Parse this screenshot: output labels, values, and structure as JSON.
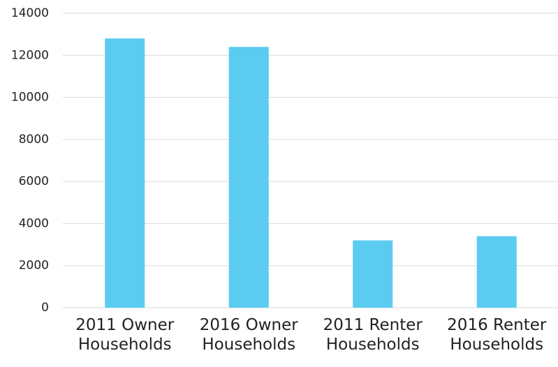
{
  "chart_data": {
    "type": "bar",
    "categories": [
      "2011 Owner Households",
      "2016 Owner Households",
      "2011 Renter Households",
      "2016 Renter Households"
    ],
    "values": [
      12800,
      12400,
      3200,
      3400
    ],
    "color": "#5bcbef",
    "ylim": [
      0,
      14000
    ],
    "yticks": [
      0,
      2000,
      4000,
      6000,
      8000,
      10000,
      12000,
      14000
    ],
    "grid": true
  }
}
